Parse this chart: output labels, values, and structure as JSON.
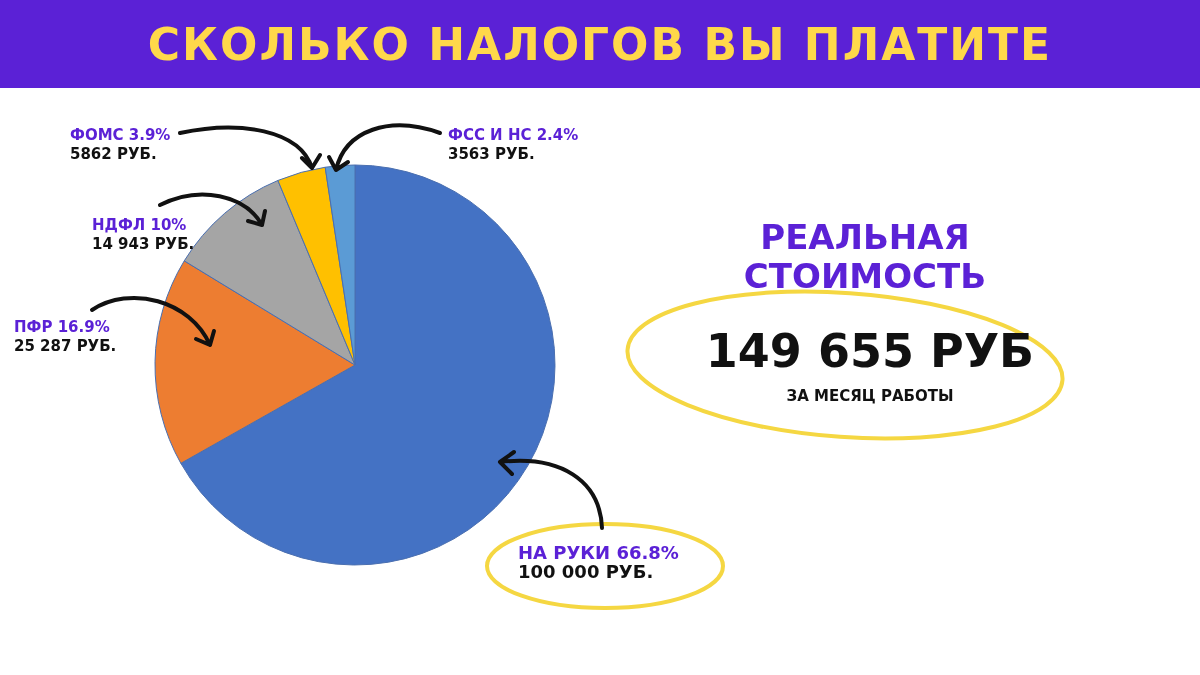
{
  "chart_data": {
    "type": "pie",
    "title": "СКОЛЬКО НАЛОГОВ ВЫ ПЛАТИТЕ",
    "categories": [
      "НА РУКИ 66.8%",
      "ПФР 16.9%",
      "НДФЛ 10%",
      "ФОМС 3.9%",
      "ФСС И НС 2.4%"
    ],
    "values": [
      100000,
      25287,
      14943,
      5862,
      3563
    ],
    "value_labels": [
      "100 000 РУБ.",
      "25 287 РУБ.",
      "14 943 РУБ.",
      "5862 РУБ.",
      "3563 РУБ."
    ],
    "colors": [
      "#4472c4",
      "#ed7d31",
      "#a5a5a5",
      "#ffc000",
      "#5b9bd5"
    ],
    "annotations": [
      "РЕАЛЬНАЯ СТОИМОСТЬ",
      "149 655 РУБ",
      "ЗА МЕСЯЦ РАБОТЫ"
    ]
  }
}
